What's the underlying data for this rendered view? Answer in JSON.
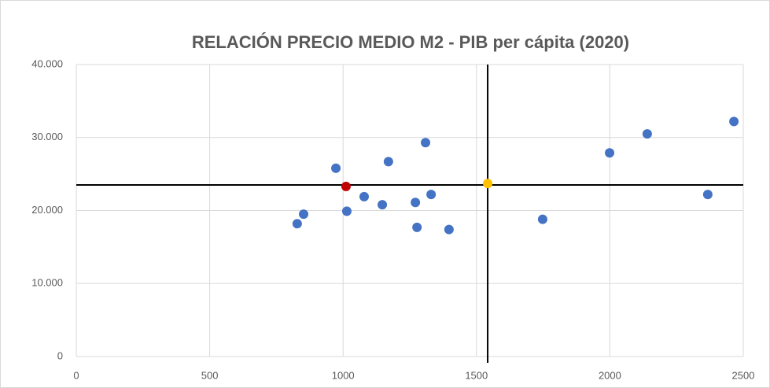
{
  "chart_data": {
    "type": "scatter",
    "title": "RELACIÓN PRECIO MEDIO M2 - PIB per cápita (2020)",
    "series": [
      {
        "color": "#4472c4",
        "x": [
          828,
          852,
          973,
          1014,
          1079,
          1170,
          1147,
          1271,
          1277,
          1309,
          1330,
          1397,
          1748,
          1999,
          2140,
          2367,
          2465
        ],
        "values": [
          18200,
          19500,
          25800,
          19900,
          21900,
          26700,
          20800,
          21100,
          17700,
          29300,
          22200,
          17400,
          18800,
          27900,
          30500,
          22200,
          32200
        ]
      },
      {
        "color": "#c00000",
        "x": [
          1011
        ],
        "values": [
          23300
        ]
      },
      {
        "color": "#ffc000",
        "x": [
          1542
        ],
        "values": [
          23700
        ]
      }
    ],
    "reference_lines": {
      "x": 1542,
      "y": 23500,
      "color": "#000000"
    },
    "xlim": [
      0,
      2500
    ],
    "xticks": [
      0,
      500,
      1000,
      1500,
      2000,
      2500
    ],
    "ylim": [
      0,
      40000
    ],
    "yticks": [
      0,
      {
        "value": 10000,
        "label": "10.000"
      },
      {
        "value": 20000,
        "label": "20.000"
      },
      {
        "value": 30000,
        "label": "30.000"
      },
      {
        "value": 40000,
        "label": "40.000"
      }
    ],
    "grid": true
  }
}
